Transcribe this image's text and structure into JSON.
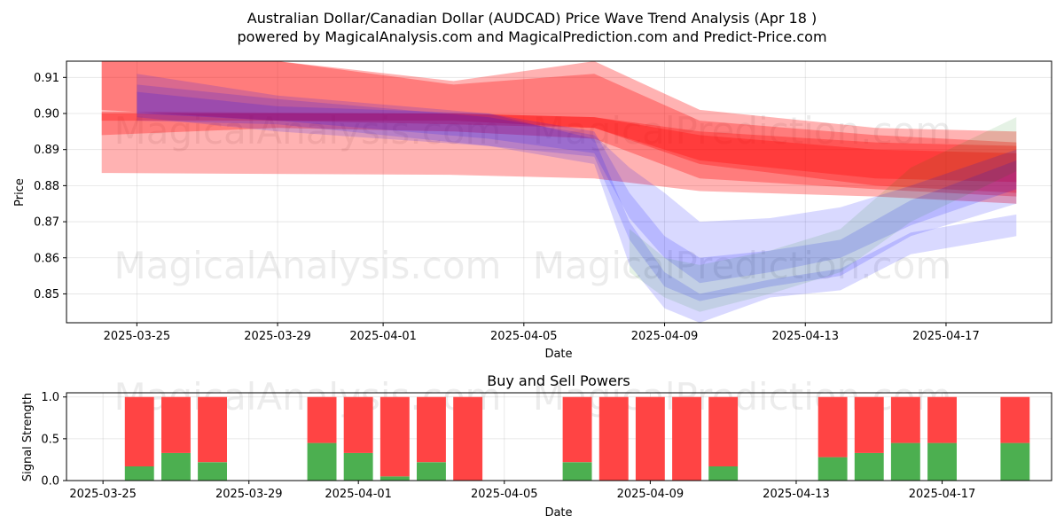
{
  "header": {
    "title": "Australian Dollar/Canadian Dollar (AUDCAD) Price Wave Trend Analysis (Apr 18 )",
    "subtitle": "powered by MagicalAnalysis.com and MagicalPrediction.com and Predict-Price.com"
  },
  "watermarks": [
    "MagicalAnalysis.com",
    "MagicalPrediction.com"
  ],
  "colors": {
    "sell_band": "#ff0000",
    "buy_band": "#0000ff",
    "green_band": "#008000",
    "buy_bar": "#4caf50",
    "sell_bar": "#ff4444"
  },
  "chart_data": [
    {
      "type": "area",
      "title": "",
      "xlabel": "Date",
      "ylabel": "Price",
      "x_ticks": [
        "2025-03-25",
        "2025-03-29",
        "2025-04-01",
        "2025-04-05",
        "2025-04-09",
        "2025-04-13",
        "2025-04-17"
      ],
      "y_ticks": [
        "0.85",
        "0.86",
        "0.87",
        "0.88",
        "0.89",
        "0.90",
        "0.91"
      ],
      "ylim": [
        0.842,
        0.9145
      ],
      "xlim": [
        "2025-03-23",
        "2025-04-20"
      ],
      "grid": true,
      "series": [
        {
          "color": "red",
          "x": [
            "2025-03-24",
            "2025-03-29",
            "2025-04-03",
            "2025-04-07",
            "2025-04-10",
            "2025-04-15",
            "2025-04-19"
          ],
          "upper": [
            0.9145,
            0.9145,
            0.909,
            0.9145,
            0.901,
            0.896,
            0.895
          ],
          "lower": [
            0.894,
            0.896,
            0.895,
            0.893,
            0.882,
            0.879,
            0.877
          ]
        },
        {
          "color": "red",
          "x": [
            "2025-03-24",
            "2025-03-29",
            "2025-04-03",
            "2025-04-07",
            "2025-04-10",
            "2025-04-15",
            "2025-04-19"
          ],
          "upper": [
            0.9145,
            0.9145,
            0.908,
            0.911,
            0.898,
            0.894,
            0.892
          ],
          "lower": [
            0.901,
            0.898,
            0.897,
            0.896,
            0.886,
            0.88,
            0.878
          ]
        },
        {
          "color": "red",
          "x": [
            "2025-03-24",
            "2025-04-03",
            "2025-04-07",
            "2025-04-10",
            "2025-04-15",
            "2025-04-19"
          ],
          "upper": [
            0.9,
            0.9,
            0.899,
            0.895,
            0.892,
            0.891
          ],
          "lower": [
            0.8835,
            0.883,
            0.882,
            0.8785,
            0.877,
            0.875
          ]
        },
        {
          "color": "red",
          "x": [
            "2025-03-24",
            "2025-04-03",
            "2025-04-07",
            "2025-04-10",
            "2025-04-15",
            "2025-04-19"
          ],
          "upper": [
            0.9005,
            0.9,
            0.899,
            0.894,
            0.89,
            0.889
          ],
          "lower": [
            0.898,
            0.898,
            0.896,
            0.887,
            0.882,
            0.881
          ]
        },
        {
          "color": "blue",
          "x": [
            "2025-03-25",
            "2025-03-29",
            "2025-04-04",
            "2025-04-07",
            "2025-04-08",
            "2025-04-09",
            "2025-04-10",
            "2025-04-12",
            "2025-04-14",
            "2025-04-16",
            "2025-04-19"
          ],
          "upper": [
            0.911,
            0.905,
            0.9,
            0.895,
            0.878,
            0.866,
            0.86,
            0.862,
            0.865,
            0.876,
            0.887
          ],
          "lower": [
            0.898,
            0.897,
            0.891,
            0.888,
            0.865,
            0.852,
            0.848,
            0.852,
            0.855,
            0.866,
            0.875
          ]
        },
        {
          "color": "blue",
          "x": [
            "2025-03-25",
            "2025-03-29",
            "2025-04-04",
            "2025-04-07",
            "2025-04-08",
            "2025-04-09",
            "2025-04-10",
            "2025-04-12",
            "2025-04-14",
            "2025-04-16",
            "2025-04-19"
          ],
          "upper": [
            0.908,
            0.904,
            0.899,
            0.894,
            0.885,
            0.878,
            0.87,
            0.871,
            0.874,
            0.88,
            0.89
          ],
          "lower": [
            0.9,
            0.898,
            0.893,
            0.889,
            0.871,
            0.86,
            0.853,
            0.856,
            0.86,
            0.869,
            0.879
          ]
        },
        {
          "color": "blue",
          "x": [
            "2025-03-25",
            "2025-03-29",
            "2025-04-04",
            "2025-04-07",
            "2025-04-08",
            "2025-04-09",
            "2025-04-10",
            "2025-04-12",
            "2025-04-14",
            "2025-04-16",
            "2025-04-19"
          ],
          "upper": [
            0.906,
            0.902,
            0.9,
            0.893,
            0.87,
            0.856,
            0.85,
            0.854,
            0.857,
            0.867,
            0.872
          ],
          "lower": [
            0.899,
            0.895,
            0.891,
            0.886,
            0.858,
            0.846,
            0.842,
            0.849,
            0.851,
            0.861,
            0.866
          ]
        },
        {
          "color": "green",
          "x": [
            "2025-04-08",
            "2025-04-09",
            "2025-04-10",
            "2025-04-12",
            "2025-04-14",
            "2025-04-16",
            "2025-04-19"
          ],
          "upper": [
            0.868,
            0.86,
            0.858,
            0.862,
            0.868,
            0.885,
            0.899
          ],
          "lower": [
            0.856,
            0.849,
            0.845,
            0.85,
            0.856,
            0.87,
            0.884
          ]
        }
      ]
    },
    {
      "type": "bar",
      "title": "Buy and Sell Powers",
      "xlabel": "Date",
      "ylabel": "Signal Strength",
      "x_ticks": [
        "2025-03-25",
        "2025-03-29",
        "2025-04-01",
        "2025-04-05",
        "2025-04-09",
        "2025-04-13",
        "2025-04-17"
      ],
      "y_ticks": [
        "0.0",
        "0.5",
        "1.0"
      ],
      "ylim": [
        0,
        1.05
      ],
      "xlim": [
        "2025-03-24",
        "2025-04-20"
      ],
      "grid": true,
      "series": [
        {
          "name": "buy",
          "color": "green",
          "x": [
            "2025-03-26",
            "2025-03-27",
            "2025-03-28",
            "2025-03-31",
            "2025-04-01",
            "2025-04-02",
            "2025-04-03",
            "2025-04-04",
            "2025-04-07",
            "2025-04-08",
            "2025-04-09",
            "2025-04-10",
            "2025-04-11",
            "2025-04-14",
            "2025-04-15",
            "2025-04-16",
            "2025-04-17",
            "2025-04-19"
          ],
          "values": [
            0.17,
            0.33,
            0.22,
            0.45,
            0.33,
            0.05,
            0.22,
            0.0,
            0.22,
            0.0,
            0.0,
            0.0,
            0.17,
            0.28,
            0.33,
            0.45,
            0.45,
            0.45
          ]
        },
        {
          "name": "sell",
          "color": "red",
          "x": [
            "2025-03-26",
            "2025-03-27",
            "2025-03-28",
            "2025-03-31",
            "2025-04-01",
            "2025-04-02",
            "2025-04-03",
            "2025-04-04",
            "2025-04-07",
            "2025-04-08",
            "2025-04-09",
            "2025-04-10",
            "2025-04-11",
            "2025-04-14",
            "2025-04-15",
            "2025-04-16",
            "2025-04-17",
            "2025-04-19"
          ],
          "values": [
            0.83,
            0.67,
            0.78,
            0.55,
            0.67,
            0.95,
            0.78,
            1.0,
            0.78,
            1.0,
            1.0,
            1.0,
            0.83,
            0.72,
            0.67,
            0.55,
            0.55,
            0.55
          ]
        }
      ]
    }
  ]
}
